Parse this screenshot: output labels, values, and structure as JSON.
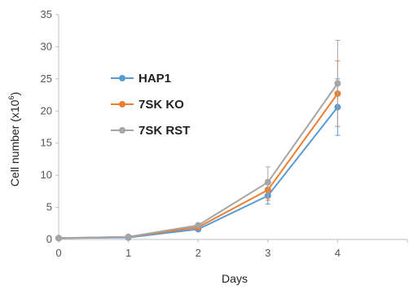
{
  "chart_data": {
    "type": "line",
    "title": "",
    "xlabel": "Days",
    "ylabel": "Cell number (x10",
    "ylabel_superscript": "6",
    "ylabel_close": ")",
    "x": [
      0,
      1,
      2,
      3,
      4
    ],
    "x_tick_labels": [
      "0",
      "1",
      "2",
      "3",
      "4"
    ],
    "y_tick_labels": [
      "0",
      "5",
      "10",
      "15",
      "20",
      "25",
      "30",
      "35"
    ],
    "xlim": [
      0,
      5
    ],
    "ylim": [
      0,
      35
    ],
    "grid": false,
    "legend_position": "upper-left",
    "series": [
      {
        "name": "HAP1",
        "color": "#5b9bd5",
        "values": [
          0.2,
          0.3,
          1.6,
          6.8,
          20.6
        ],
        "error": [
          0,
          0,
          0.2,
          1.3,
          4.4
        ]
      },
      {
        "name": "7SK KO",
        "color": "#ed7d31",
        "values": [
          0.2,
          0.4,
          1.9,
          7.7,
          22.7
        ],
        "error": [
          0,
          0,
          0.2,
          1.6,
          5.1
        ]
      },
      {
        "name": "7SK RST",
        "color": "#a5a5a5",
        "values": [
          0.2,
          0.4,
          2.2,
          8.9,
          24.3
        ],
        "error": [
          0,
          0,
          0.3,
          2.4,
          6.7
        ]
      }
    ]
  }
}
